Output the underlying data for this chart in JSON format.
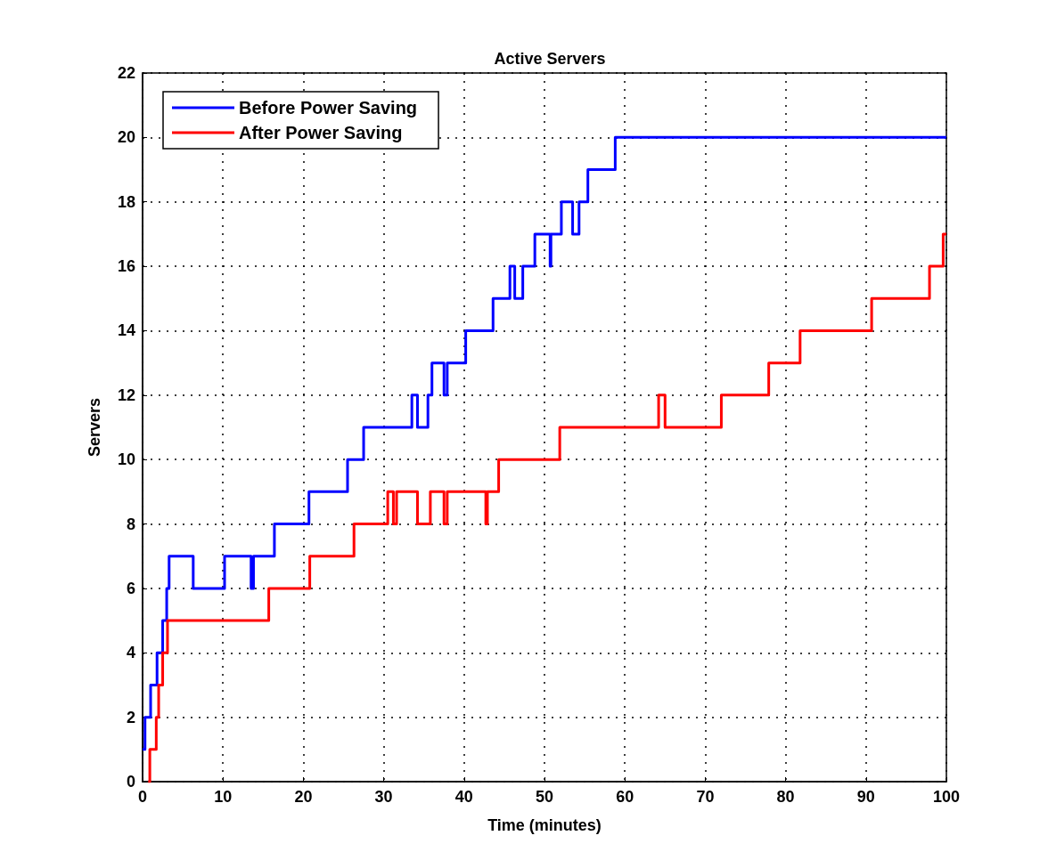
{
  "chart_data": {
    "type": "step",
    "title": "Active Servers",
    "xlabel": "Time (minutes)",
    "ylabel": "Servers",
    "xlim": [
      0,
      100
    ],
    "xticks": [
      0,
      10,
      20,
      30,
      40,
      50,
      60,
      70,
      80,
      90,
      100
    ],
    "ylim": [
      0,
      22
    ],
    "yticks": [
      0,
      2,
      4,
      6,
      8,
      10,
      12,
      14,
      16,
      18,
      20,
      22
    ],
    "grid": true,
    "legend": "top left",
    "marker": "none",
    "line_style": "solid",
    "series": [
      {
        "name": "Before Power Saving",
        "color": "#0000ff",
        "x": [
          0,
          0.3,
          1,
          1.8,
          2.5,
          3,
          3.3,
          6.3,
          10.2,
          13.5,
          13.8,
          16.4,
          20.7,
          25.5,
          27.5,
          33.5,
          34.2,
          35.5,
          36,
          37.5,
          37.9,
          40.2,
          43.6,
          45.7,
          46.3,
          47.3,
          48.8,
          50.7,
          50.8,
          52.1,
          53.5,
          54.3,
          55.4,
          58.8,
          100
        ],
        "values": [
          1,
          2,
          3,
          4,
          5,
          6,
          7,
          6,
          7,
          6,
          7,
          8,
          9,
          10,
          11,
          12,
          11,
          12,
          13,
          12,
          13,
          14,
          15,
          16,
          15,
          16,
          17,
          16,
          17,
          18,
          17,
          18,
          19,
          20,
          20
        ]
      },
      {
        "name": "After Power Saving",
        "color": "#ff0000",
        "x": [
          0.7,
          0.9,
          1.7,
          2,
          2.5,
          3.1,
          15.7,
          20.8,
          26.3,
          30.5,
          31.2,
          31.6,
          34.2,
          35.8,
          37.5,
          37.9,
          42.7,
          42.9,
          44.3,
          51.9,
          64.2,
          65,
          72,
          77.9,
          81.8,
          90.7,
          97.9,
          99.6,
          100
        ],
        "values": [
          0,
          1,
          2,
          3,
          4,
          5,
          6,
          7,
          8,
          9,
          8,
          9,
          8,
          9,
          8,
          9,
          8,
          9,
          10,
          11,
          12,
          11,
          12,
          13,
          14,
          15,
          16,
          17,
          17
        ]
      }
    ]
  }
}
